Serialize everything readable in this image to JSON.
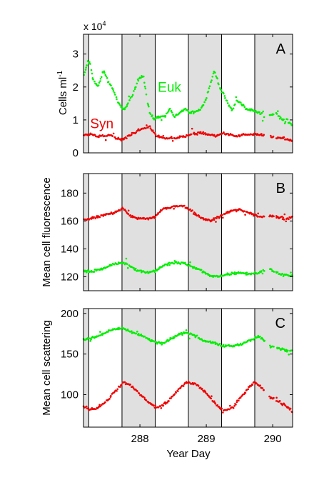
{
  "chart_data": {
    "type": "scatter",
    "xlabel": "Year Day",
    "xlim": [
      287.15,
      290.3
    ],
    "x_ticks": [
      288,
      289,
      290
    ],
    "night_bands": [
      [
        287.15,
        287.23
      ],
      [
        287.73,
        288.23
      ],
      [
        288.73,
        289.23
      ],
      [
        289.73,
        290.3
      ]
    ],
    "day_lines": [
      287.23,
      287.73,
      288.23,
      288.73,
      289.23,
      289.73
    ],
    "panels": [
      {
        "id": "A",
        "ylabel": "Cells ml",
        "ylabel_sup": "-1",
        "multiplier": "x 10",
        "multiplier_sup": "4",
        "ylim": [
          0,
          3.6
        ],
        "y_ticks": [
          0,
          1,
          2,
          3
        ],
        "annotations": [
          {
            "text": "Euk",
            "color": "#00ee00",
            "x": 288.27,
            "y": 1.85
          },
          {
            "text": "Syn",
            "color": "#ee0000",
            "x": 287.25,
            "y": 0.75
          }
        ],
        "series": [
          {
            "name": "Euk",
            "color": "#00ee00",
            "gaps": [
              [
                289.88,
                289.95
              ],
              [
                290.02,
                290.05
              ]
            ],
            "x": [
              287.15,
              287.22,
              287.25,
              287.3,
              287.37,
              287.45,
              287.52,
              287.6,
              287.68,
              287.75,
              287.82,
              287.9,
              287.97,
              288.05,
              288.1,
              288.15,
              288.2,
              288.24,
              288.3,
              288.38,
              288.45,
              288.52,
              288.6,
              288.68,
              288.75,
              288.82,
              288.9,
              288.97,
              289.05,
              289.12,
              289.18,
              289.25,
              289.3,
              289.35,
              289.4,
              289.45,
              289.52,
              289.6,
              289.68,
              289.75,
              289.82,
              289.88,
              289.95,
              290.05,
              290.15,
              290.3
            ],
            "y": [
              2.3,
              2.8,
              2.7,
              2.2,
              2.0,
              2.5,
              2.2,
              1.9,
              1.5,
              1.3,
              1.5,
              1.8,
              2.2,
              2.4,
              1.7,
              1.2,
              1.05,
              1.05,
              1.1,
              1.1,
              1.35,
              1.1,
              1.2,
              1.35,
              1.2,
              1.25,
              1.3,
              1.5,
              2.0,
              2.5,
              2.1,
              1.8,
              1.6,
              1.4,
              1.3,
              1.6,
              1.5,
              1.35,
              1.3,
              1.25,
              1.2,
              1.1,
              1.15,
              1.2,
              1.0,
              0.85
            ]
          },
          {
            "name": "Syn",
            "color": "#ee0000",
            "gaps": [
              [
                289.88,
                289.95
              ],
              [
                290.02,
                290.05
              ]
            ],
            "x": [
              287.15,
              287.25,
              287.35,
              287.45,
              287.55,
              287.65,
              287.75,
              287.85,
              287.95,
              288.05,
              288.15,
              288.25,
              288.35,
              288.45,
              288.55,
              288.65,
              288.75,
              288.85,
              288.95,
              289.05,
              289.15,
              289.25,
              289.35,
              289.45,
              289.55,
              289.65,
              289.75,
              289.85,
              289.95,
              290.05,
              290.15,
              290.3
            ],
            "y": [
              0.55,
              0.55,
              0.5,
              0.5,
              0.55,
              0.45,
              0.4,
              0.55,
              0.65,
              0.75,
              0.8,
              0.5,
              0.45,
              0.45,
              0.45,
              0.5,
              0.55,
              0.6,
              0.6,
              0.55,
              0.5,
              0.6,
              0.55,
              0.5,
              0.55,
              0.55,
              0.55,
              0.55,
              0.5,
              0.45,
              0.45,
              0.35
            ]
          }
        ]
      },
      {
        "id": "B",
        "ylabel": "Mean cell fluorescence",
        "ylim": [
          110,
          194
        ],
        "y_ticks": [
          120,
          140,
          160,
          180
        ],
        "annotations": [],
        "series": [
          {
            "name": "Syn",
            "color": "#ee0000",
            "gaps": [
              [
                289.88,
                289.95
              ],
              [
                290.02,
                290.05
              ]
            ],
            "x": [
              287.15,
              287.3,
              287.45,
              287.6,
              287.75,
              287.85,
              287.95,
              288.1,
              288.23,
              288.35,
              288.5,
              288.65,
              288.75,
              288.9,
              289.05,
              289.2,
              289.35,
              289.5,
              289.65,
              289.8,
              289.95,
              290.1,
              290.2,
              290.3
            ],
            "y": [
              161,
              162,
              164,
              166,
              169,
              164,
              162,
              162,
              163,
              169,
              170,
              171,
              168,
              163,
              160,
              163,
              167,
              168,
              166,
              163,
              164,
              163,
              161,
              163
            ]
          },
          {
            "name": "Euk",
            "color": "#00ee00",
            "gaps": [
              [
                289.88,
                289.95
              ],
              [
                290.02,
                290.05
              ]
            ],
            "x": [
              287.15,
              287.3,
              287.45,
              287.6,
              287.75,
              287.85,
              287.95,
              288.1,
              288.23,
              288.35,
              288.5,
              288.65,
              288.75,
              288.9,
              289.05,
              289.2,
              289.35,
              289.5,
              289.65,
              289.8,
              289.95,
              290.1,
              290.2,
              290.3
            ],
            "y": [
              124,
              124,
              126,
              129,
              130,
              128,
              125,
              123,
              124,
              128,
              130,
              130,
              128,
              125,
              121,
              120,
              122,
              123,
              122,
              123,
              126,
              122,
              121,
              121
            ]
          }
        ]
      },
      {
        "id": "C",
        "ylabel": "Mean cell scattering",
        "ylim": [
          60,
          206
        ],
        "y_ticks": [
          100,
          150,
          200
        ],
        "annotations": [],
        "series": [
          {
            "name": "Euk",
            "color": "#00ee00",
            "gaps": [
              [
                289.88,
                289.95
              ],
              [
                290.02,
                290.05
              ]
            ],
            "x": [
              287.15,
              287.3,
              287.45,
              287.6,
              287.75,
              287.9,
              288.05,
              288.2,
              288.35,
              288.5,
              288.65,
              288.8,
              288.95,
              289.1,
              289.25,
              289.4,
              289.55,
              289.7,
              289.8,
              289.95,
              290.1,
              290.2,
              290.3
            ],
            "y": [
              168,
              170,
              175,
              181,
              182,
              176,
              173,
              165,
              163,
              170,
              177,
              174,
              167,
              164,
              160,
              160,
              163,
              168,
              172,
              160,
              157,
              155,
              154
            ]
          },
          {
            "name": "Syn",
            "color": "#ee0000",
            "gaps": [
              [
                289.88,
                289.95
              ],
              [
                290.02,
                290.05
              ]
            ],
            "x": [
              287.15,
              287.25,
              287.35,
              287.5,
              287.62,
              287.75,
              287.85,
              288.0,
              288.15,
              288.25,
              288.4,
              288.55,
              288.7,
              288.85,
              289.0,
              289.12,
              289.25,
              289.4,
              289.55,
              289.72,
              289.82,
              289.95,
              290.1,
              290.2,
              290.3
            ],
            "y": [
              86,
              82,
              83,
              92,
              104,
              115,
              113,
              100,
              90,
              83,
              90,
              104,
              115,
              113,
              102,
              90,
              80,
              84,
              100,
              115,
              110,
              97,
              91,
              86,
              79
            ]
          }
        ]
      }
    ]
  }
}
